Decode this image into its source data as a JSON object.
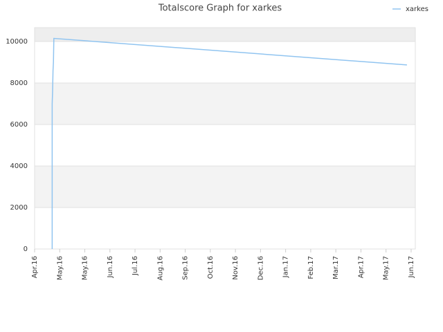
{
  "chart_data": {
    "type": "line",
    "title": "Totalscore Graph for xarkes",
    "x": [
      21,
      21,
      21.5,
      22,
      22.5,
      23,
      445
    ],
    "series": [
      {
        "name": "xarkes",
        "color": "#90c4f0",
        "values": [
          0,
          7000,
          7600,
          8600,
          9000,
          10150,
          8870
        ]
      }
    ],
    "xlim": [
      0,
      455
    ],
    "xticks": [
      {
        "value": 0,
        "label": "Apr.16"
      },
      {
        "value": 30,
        "label": "May.16"
      },
      {
        "value": 60,
        "label": "May.16"
      },
      {
        "value": 90,
        "label": "Jun.16"
      },
      {
        "value": 120,
        "label": "Jul.16"
      },
      {
        "value": 150,
        "label": "Aug.16"
      },
      {
        "value": 180,
        "label": "Sep.16"
      },
      {
        "value": 210,
        "label": "Oct.16"
      },
      {
        "value": 240,
        "label": "Nov.16"
      },
      {
        "value": 270,
        "label": "Dec.16"
      },
      {
        "value": 300,
        "label": "Jan.17"
      },
      {
        "value": 330,
        "label": "Feb.17"
      },
      {
        "value": 360,
        "label": "Mar.17"
      },
      {
        "value": 390,
        "label": "Apr.17"
      },
      {
        "value": 420,
        "label": "May.17"
      },
      {
        "value": 450,
        "label": "Jun.17"
      }
    ],
    "ylim": [
      0,
      10667
    ],
    "yticks": [
      0,
      2000,
      4000,
      6000,
      8000,
      10000
    ],
    "grid": true,
    "legend": "top-right"
  }
}
